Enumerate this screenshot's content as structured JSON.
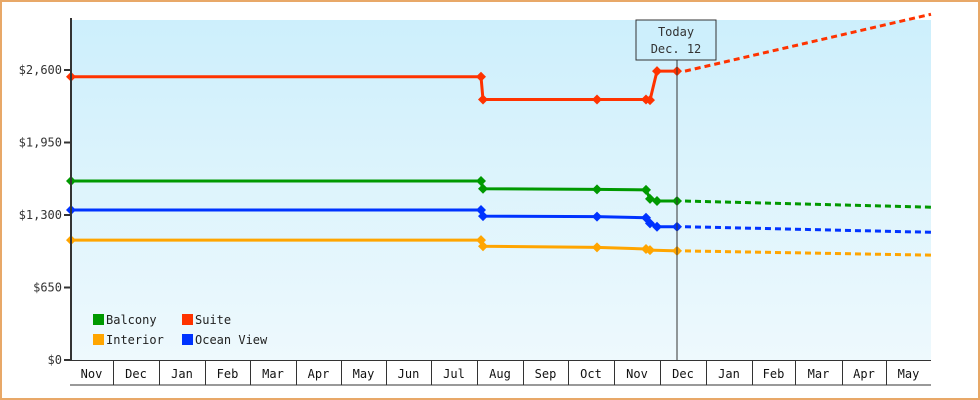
{
  "chart_data": {
    "type": "line",
    "title": "",
    "xlabel": "",
    "ylabel": "",
    "ylim": [
      0,
      2900
    ],
    "y_ticks": [
      {
        "value": 0,
        "label": "$0"
      },
      {
        "value": 650,
        "label": "$650"
      },
      {
        "value": 1300,
        "label": "$1,300"
      },
      {
        "value": 1950,
        "label": "$1,950"
      },
      {
        "value": 2600,
        "label": "$2,600"
      }
    ],
    "x_months": [
      "Nov",
      "Dec",
      "Jan",
      "Feb",
      "Mar",
      "Apr",
      "May",
      "Jun",
      "Jul",
      "Aug",
      "Sep",
      "Oct",
      "Nov",
      "Dec",
      "Jan",
      "Feb",
      "Mar",
      "Apr",
      "May"
    ],
    "grid": false,
    "legend_position": "bottom-left inside",
    "today_marker": {
      "line1": "Today",
      "line2": "Dec. 12"
    },
    "series": [
      {
        "name": "Balcony",
        "color": "#009900",
        "actual": [
          {
            "date": "Nov (start)",
            "value": 1605
          },
          {
            "date": "Aug 1",
            "value": 1605
          },
          {
            "date": "Aug 1",
            "value": 1535
          },
          {
            "date": "Oct 1",
            "value": 1530
          },
          {
            "date": "Nov 1",
            "value": 1525
          },
          {
            "date": "Nov 5",
            "value": 1445
          },
          {
            "date": "Nov 10",
            "value": 1425
          },
          {
            "date": "Dec 12",
            "value": 1425
          }
        ],
        "forecast_end": {
          "date": "May (end)",
          "value": 1370
        }
      },
      {
        "name": "Suite",
        "color": "#ff3300",
        "actual": [
          {
            "date": "Nov (start)",
            "value": 2540
          },
          {
            "date": "Aug 1",
            "value": 2540
          },
          {
            "date": "Aug 1",
            "value": 2335
          },
          {
            "date": "Oct 1",
            "value": 2335
          },
          {
            "date": "Nov 1",
            "value": 2335
          },
          {
            "date": "Nov 5",
            "value": 2330
          },
          {
            "date": "Nov 10",
            "value": 2590
          },
          {
            "date": "Dec 12",
            "value": 2590
          }
        ],
        "forecast_end": {
          "date": "May (end)",
          "value": 3100
        }
      },
      {
        "name": "Interior",
        "color": "#ffa500",
        "actual": [
          {
            "date": "Nov (start)",
            "value": 1075
          },
          {
            "date": "Aug 1",
            "value": 1075
          },
          {
            "date": "Aug 1",
            "value": 1020
          },
          {
            "date": "Oct 1",
            "value": 1010
          },
          {
            "date": "Nov 1",
            "value": 995
          },
          {
            "date": "Nov 5",
            "value": 985
          },
          {
            "date": "Dec 12",
            "value": 978
          }
        ],
        "forecast_end": {
          "date": "May (end)",
          "value": 940
        }
      },
      {
        "name": "Ocean View",
        "color": "#0033ff",
        "actual": [
          {
            "date": "Nov (start)",
            "value": 1345
          },
          {
            "date": "Aug 1",
            "value": 1345
          },
          {
            "date": "Aug 1",
            "value": 1290
          },
          {
            "date": "Oct 1",
            "value": 1285
          },
          {
            "date": "Nov 1",
            "value": 1275
          },
          {
            "date": "Nov 5",
            "value": 1225
          },
          {
            "date": "Nov 10",
            "value": 1195
          },
          {
            "date": "Dec 12",
            "value": 1195
          }
        ],
        "forecast_end": {
          "date": "May (end)",
          "value": 1145
        }
      }
    ]
  },
  "legend": [
    {
      "label": "Balcony",
      "color": "#009900"
    },
    {
      "label": "Suite",
      "color": "#ff3300"
    },
    {
      "label": "Interior",
      "color": "#ffa500"
    },
    {
      "label": "Ocean View",
      "color": "#0033ff"
    }
  ],
  "colors": {
    "border": "#e8a868",
    "plot_top": "#cdeffc",
    "plot_bottom": "#eef9fd",
    "axis": "#333333"
  }
}
